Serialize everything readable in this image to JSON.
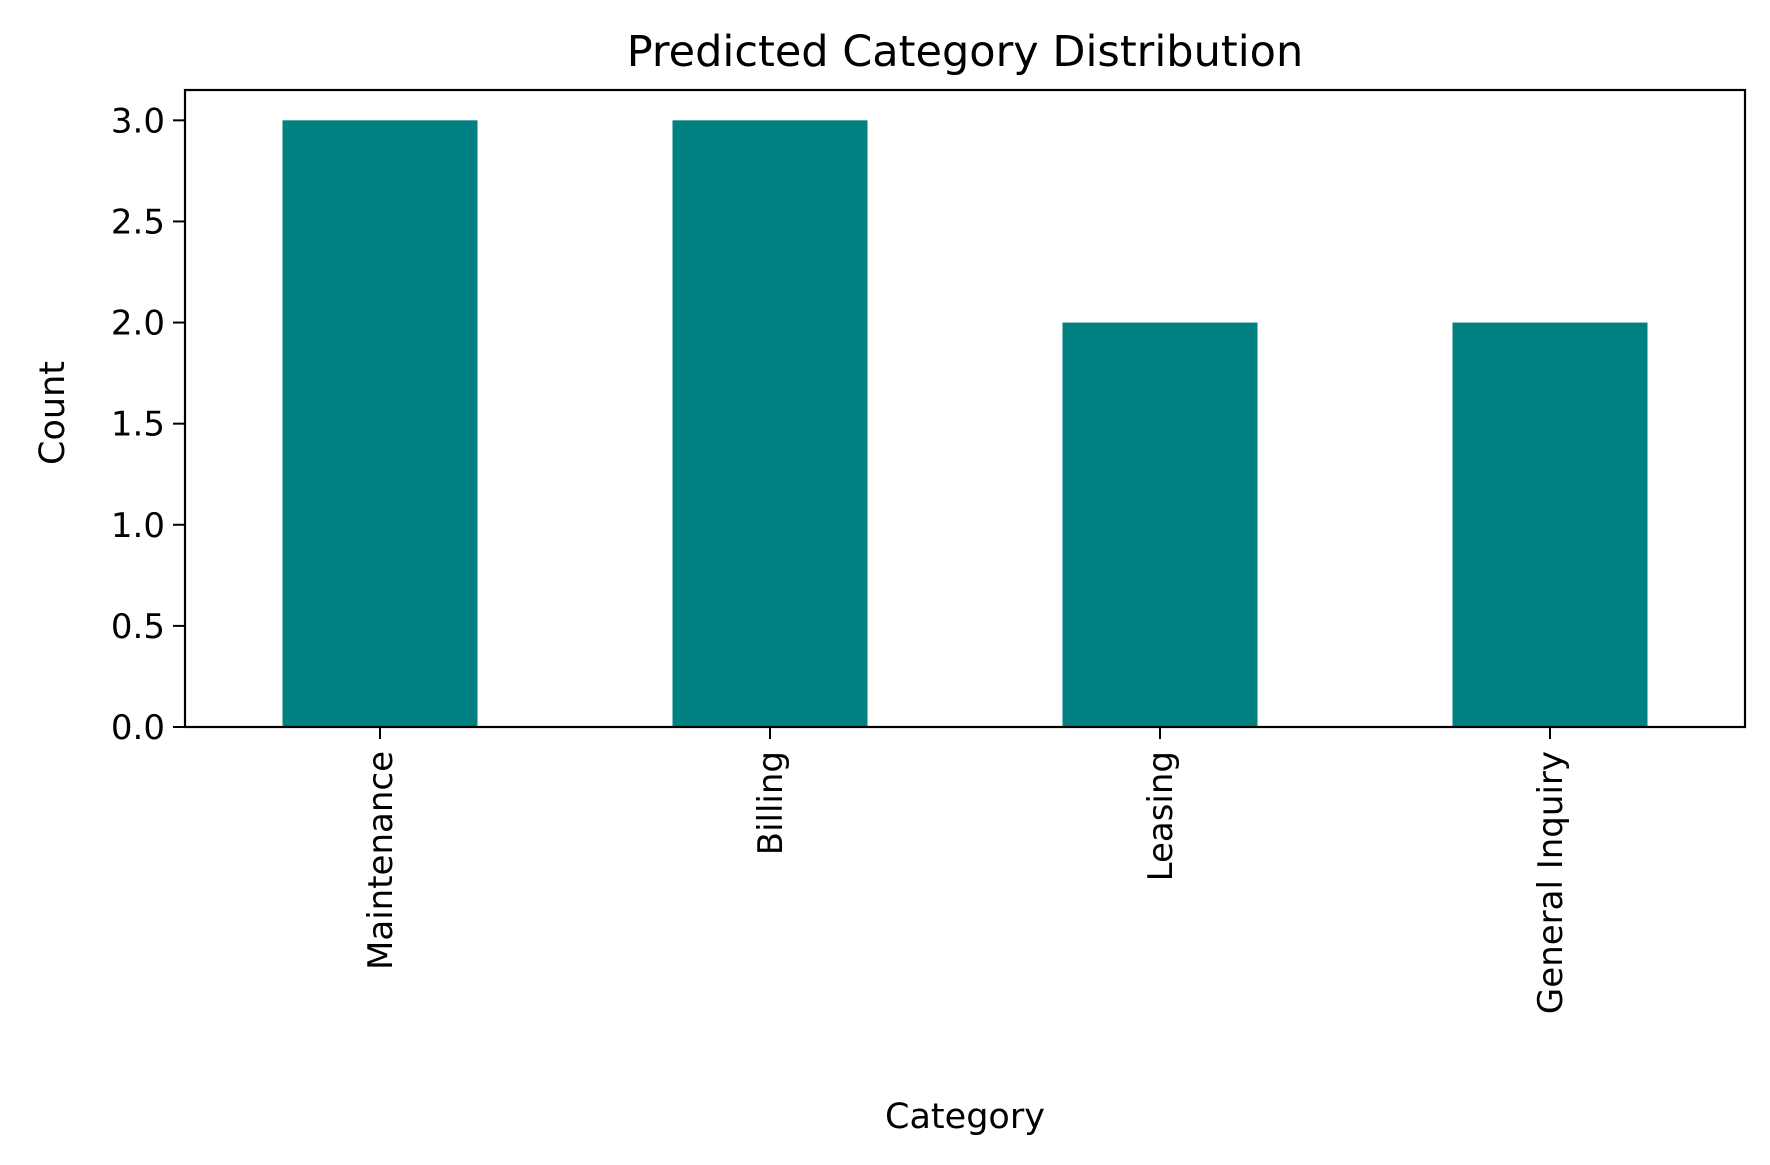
{
  "chart_data": {
    "type": "bar",
    "title": "Predicted Category Distribution",
    "xlabel": "Category",
    "ylabel": "Count",
    "categories": [
      "Maintenance",
      "Billing",
      "Leasing",
      "General Inquiry"
    ],
    "values": [
      3,
      3,
      2,
      2
    ],
    "ylim": [
      0,
      3.15
    ],
    "yticks": [
      "0.0",
      "0.5",
      "1.0",
      "1.5",
      "2.0",
      "2.5",
      "3.0"
    ],
    "bar_color": "#008080",
    "grid": false,
    "legend": "none"
  }
}
